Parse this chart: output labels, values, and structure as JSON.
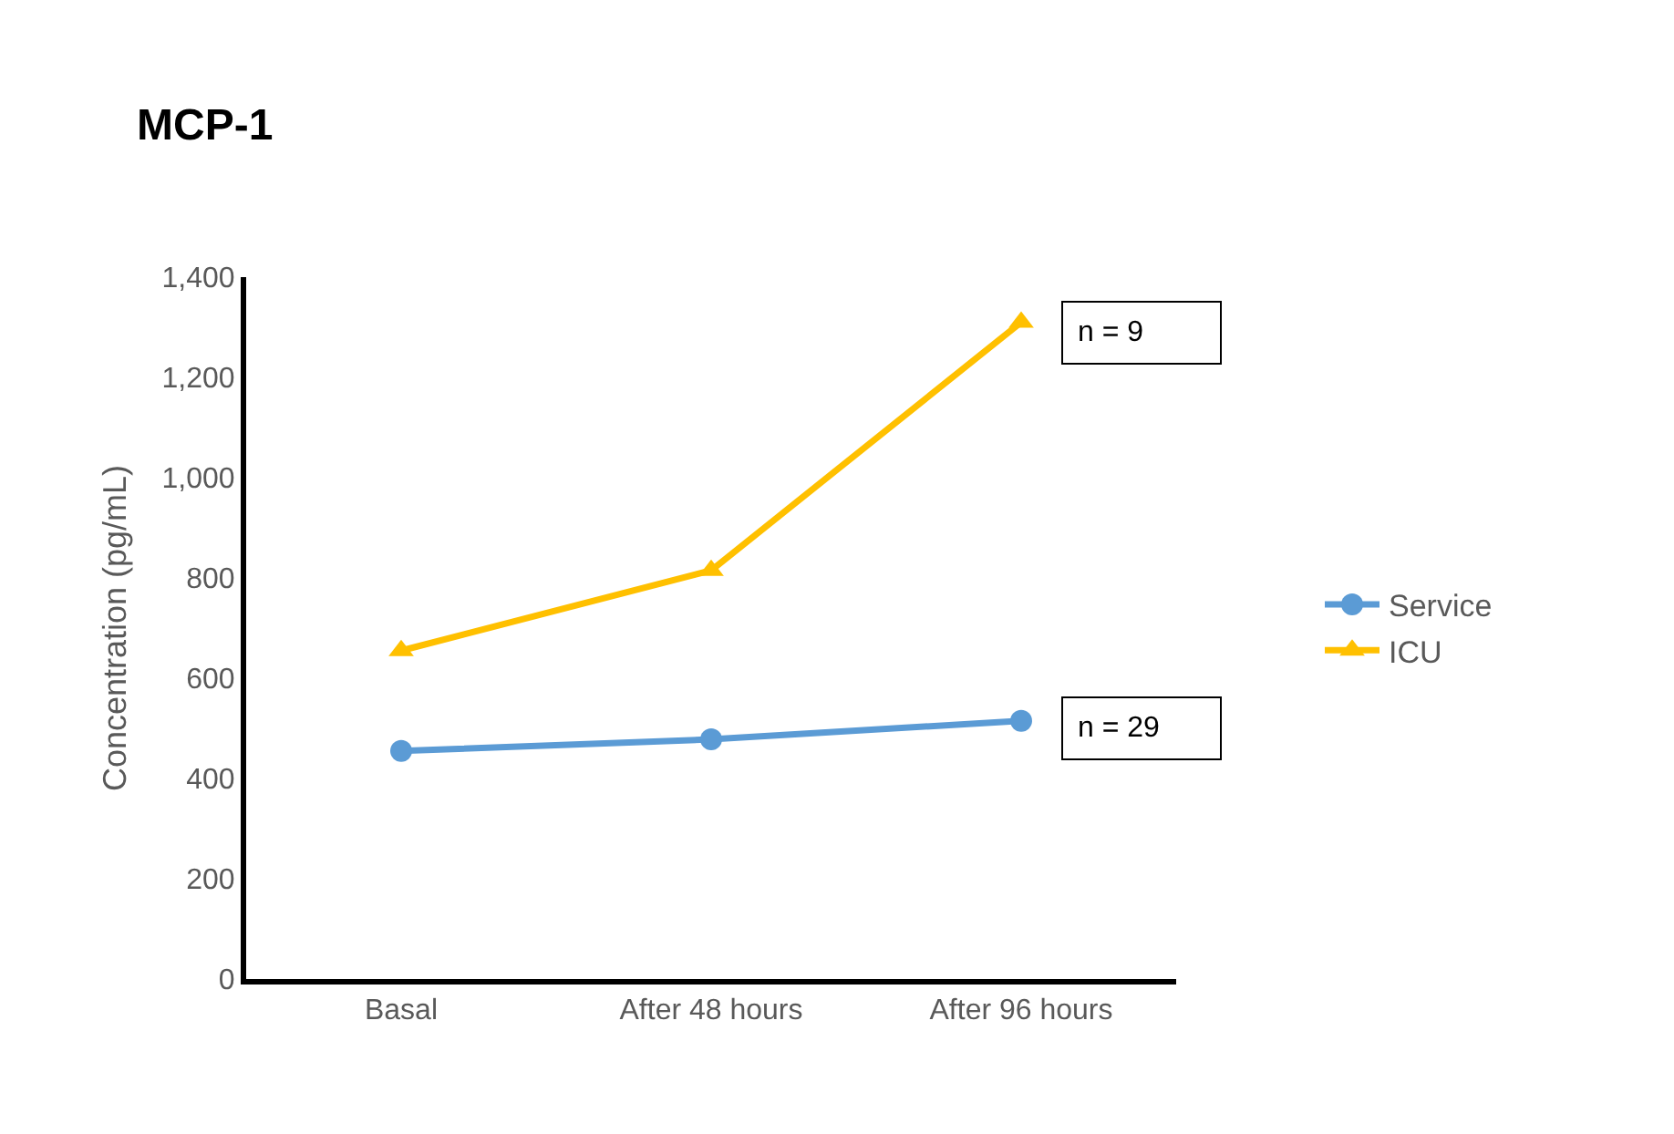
{
  "chart_data": {
    "type": "line",
    "title": "MCP-1",
    "ylabel": "Concentration (pg/mL)",
    "categories": [
      "Basal",
      "After 48 hours",
      "After 96 hours"
    ],
    "series": [
      {
        "name": "Service",
        "color": "#5b9bd5",
        "marker": "circle",
        "values": [
          455,
          478,
          515
        ]
      },
      {
        "name": "ICU",
        "color": "#ffc000",
        "marker": "triangle",
        "values": [
          655,
          815,
          1310
        ]
      }
    ],
    "ylim": [
      0,
      1400
    ],
    "yticks": [
      {
        "value": 0,
        "label": "0"
      },
      {
        "value": 200,
        "label": "200"
      },
      {
        "value": 400,
        "label": "400"
      },
      {
        "value": 600,
        "label": "600"
      },
      {
        "value": 800,
        "label": "800"
      },
      {
        "value": 1000,
        "label": "1,000"
      },
      {
        "value": 1200,
        "label": "1,200"
      },
      {
        "value": 1400,
        "label": "1,400"
      }
    ],
    "annotations": [
      {
        "text": "n = 9",
        "x": "After 96 hours",
        "y": 1290
      },
      {
        "text": "n = 29",
        "x": "After 96 hours",
        "y": 500
      }
    ],
    "grid": false,
    "legend": "right",
    "line_style": "solid"
  }
}
